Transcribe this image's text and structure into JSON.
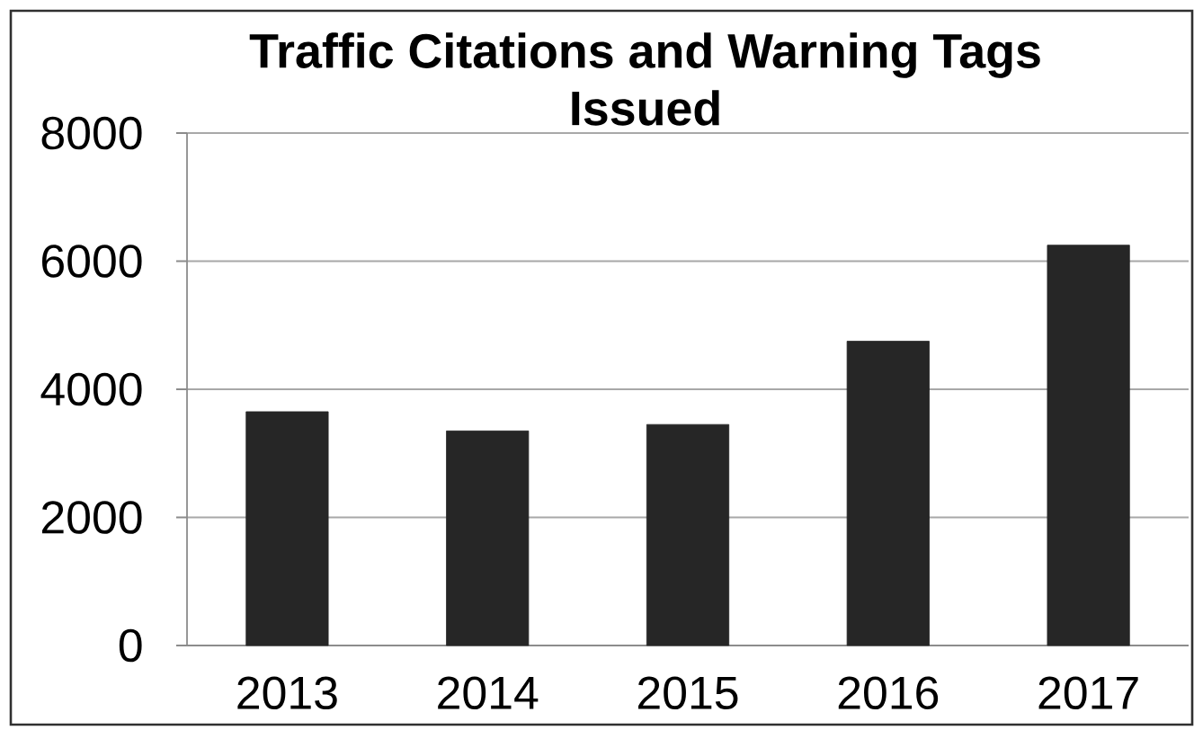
{
  "chart_data": {
    "type": "bar",
    "title": "Traffic Citations and Warning Tags Issued",
    "categories": [
      "2013",
      "2014",
      "2015",
      "2016",
      "2017"
    ],
    "values": [
      3650,
      3350,
      3450,
      4750,
      6250
    ],
    "color": "#262626",
    "ylim": [
      0,
      8000
    ],
    "yticks": [
      0,
      2000,
      4000,
      6000,
      8000
    ],
    "grid": "y"
  }
}
